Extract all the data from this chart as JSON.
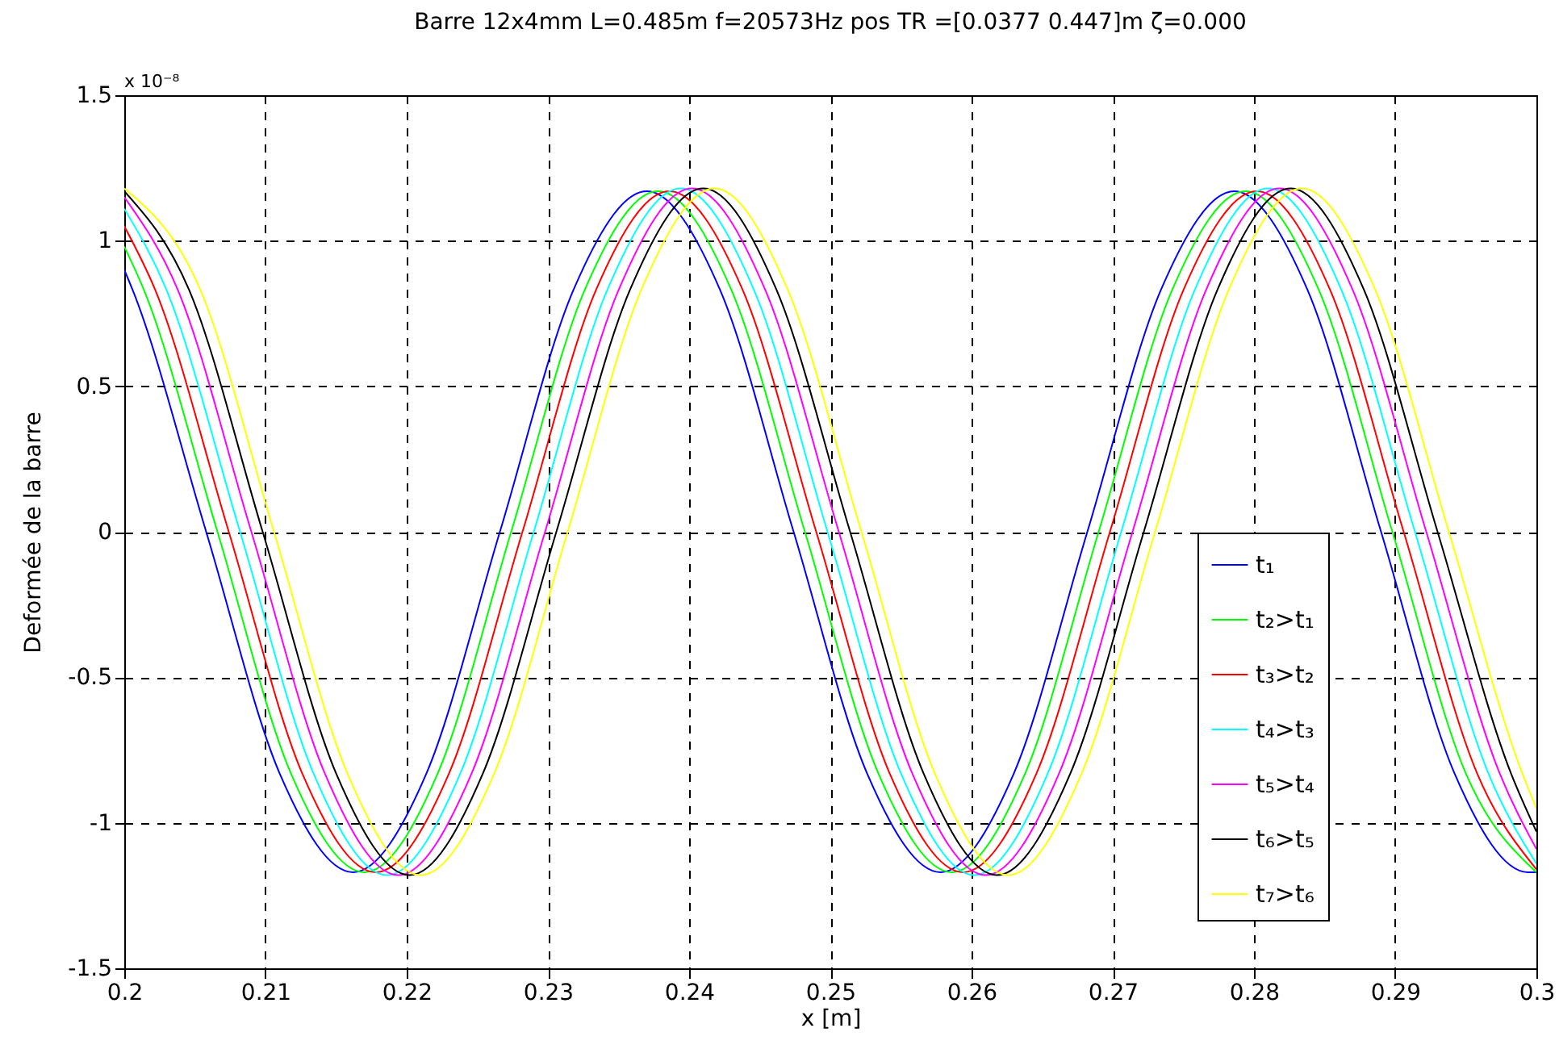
{
  "chart_data": {
    "type": "line",
    "title": "Barre 12x4mm   L=0.485m   f=20573Hz   pos TR =[0.0377  0.447]m   ζ=0.000",
    "xlabel": "x   [m]",
    "ylabel": "Deformée de la barre",
    "annotations": [
      "x 10⁻⁸"
    ],
    "xlim": [
      0.2,
      0.3
    ],
    "xticks": [
      0.2,
      0.21,
      0.22,
      0.23,
      0.24,
      0.25,
      0.26,
      0.27,
      0.28,
      0.29,
      0.3
    ],
    "ylim": [
      -1.5,
      1.5
    ],
    "yticks": [
      -1.5,
      -1,
      -0.5,
      0,
      0.5,
      1,
      1.5
    ],
    "grid": true,
    "legend": "bottom right",
    "series": [
      {
        "name": "t₁",
        "color": "#0000ff",
        "x": [
          0.2,
          0.2006,
          0.2058,
          0.211,
          0.2162,
          0.2214,
          0.2266,
          0.2318,
          0.237,
          0.2422,
          0.2474,
          0.2526,
          0.2578,
          0.263,
          0.2682,
          0.2734,
          0.2786,
          0.2838,
          0.289,
          0.2942,
          0.2994,
          0.3
        ],
        "values": [
          0.9,
          0.83,
          0,
          -0.83,
          -1.17,
          -0.83,
          0,
          0.83,
          1.17,
          0.83,
          0,
          -0.83,
          -1.17,
          -0.83,
          0,
          0.83,
          1.17,
          0.83,
          0,
          -0.83,
          -1.17,
          -1.17
        ]
      },
      {
        "name": "t₂>t₁",
        "color": "#00ff00",
        "x": [
          0.2,
          0.2014,
          0.2066,
          0.2118,
          0.217,
          0.2222,
          0.2274,
          0.2326,
          0.2378,
          0.243,
          0.2482,
          0.2534,
          0.2586,
          0.2638,
          0.269,
          0.2742,
          0.2794,
          0.2846,
          0.2898,
          0.295,
          0.3
        ],
        "values": [
          0.98,
          0.83,
          0,
          -0.83,
          -1.17,
          -0.83,
          0,
          0.83,
          1.17,
          0.83,
          0,
          -0.83,
          -1.17,
          -0.83,
          0,
          0.83,
          1.17,
          0.83,
          0,
          -0.83,
          -1.17
        ]
      },
      {
        "name": "t₃>t₂",
        "color": "#ff0000",
        "x": [
          0.2,
          0.2022,
          0.2074,
          0.2126,
          0.2178,
          0.223,
          0.2282,
          0.2334,
          0.2386,
          0.2438,
          0.249,
          0.2542,
          0.2594,
          0.2646,
          0.2698,
          0.275,
          0.2802,
          0.2854,
          0.2906,
          0.2958,
          0.3
        ],
        "values": [
          1.05,
          0.83,
          0,
          -0.83,
          -1.17,
          -0.83,
          0,
          0.83,
          1.17,
          0.83,
          0,
          -0.83,
          -1.17,
          -0.83,
          0,
          0.83,
          1.17,
          0.83,
          0,
          -0.83,
          -1.16
        ]
      },
      {
        "name": "t₄>t₃",
        "color": "#00ffff",
        "x": [
          0.2,
          0.203,
          0.2082,
          0.2134,
          0.2186,
          0.2238,
          0.229,
          0.2342,
          0.2394,
          0.2446,
          0.2498,
          0.255,
          0.2602,
          0.2654,
          0.2706,
          0.2758,
          0.281,
          0.2862,
          0.2914,
          0.2966,
          0.3
        ],
        "values": [
          1.11,
          0.83,
          0,
          -0.83,
          -1.18,
          -0.83,
          0,
          0.83,
          1.18,
          0.83,
          0,
          -0.83,
          -1.18,
          -0.83,
          0,
          0.83,
          1.18,
          0.83,
          0,
          -0.83,
          -1.14
        ]
      },
      {
        "name": "t₅>t₄",
        "color": "#ff00ff",
        "x": [
          0.2,
          0.2038,
          0.209,
          0.2142,
          0.2194,
          0.2246,
          0.2298,
          0.235,
          0.2402,
          0.2454,
          0.2506,
          0.2558,
          0.261,
          0.2662,
          0.2714,
          0.2766,
          0.2818,
          0.287,
          0.2922,
          0.2974,
          0.3
        ],
        "values": [
          1.15,
          0.83,
          0,
          -0.83,
          -1.18,
          -0.83,
          0,
          0.83,
          1.18,
          0.83,
          0,
          -0.83,
          -1.18,
          -0.83,
          0,
          0.83,
          1.18,
          0.83,
          0,
          -0.83,
          -1.09
        ]
      },
      {
        "name": "t₆>t₅",
        "color": "#000000",
        "x": [
          0.2,
          0.2046,
          0.2098,
          0.215,
          0.2202,
          0.2254,
          0.2306,
          0.2358,
          0.241,
          0.2462,
          0.2514,
          0.2566,
          0.2618,
          0.267,
          0.2722,
          0.2774,
          0.2826,
          0.2878,
          0.293,
          0.2982,
          0.3
        ],
        "values": [
          1.17,
          0.83,
          0,
          -0.83,
          -1.18,
          -0.83,
          0,
          0.83,
          1.18,
          0.83,
          0,
          -0.83,
          -1.18,
          -0.83,
          0,
          0.83,
          1.18,
          0.83,
          0,
          -0.83,
          -1.03
        ]
      },
      {
        "name": "t₇>t₆",
        "color": "#ffff00",
        "x": [
          0.2,
          0.2054,
          0.2106,
          0.2158,
          0.221,
          0.2262,
          0.2314,
          0.2366,
          0.2418,
          0.247,
          0.2522,
          0.2574,
          0.2626,
          0.2678,
          0.273,
          0.2782,
          0.2834,
          0.2886,
          0.2938,
          0.299,
          0.3
        ],
        "values": [
          1.18,
          0.83,
          0,
          -0.83,
          -1.18,
          -0.83,
          0,
          0.83,
          1.18,
          0.83,
          0,
          -0.83,
          -1.18,
          -0.83,
          0,
          0.83,
          1.18,
          0.83,
          0,
          -0.83,
          -0.95
        ]
      }
    ]
  }
}
